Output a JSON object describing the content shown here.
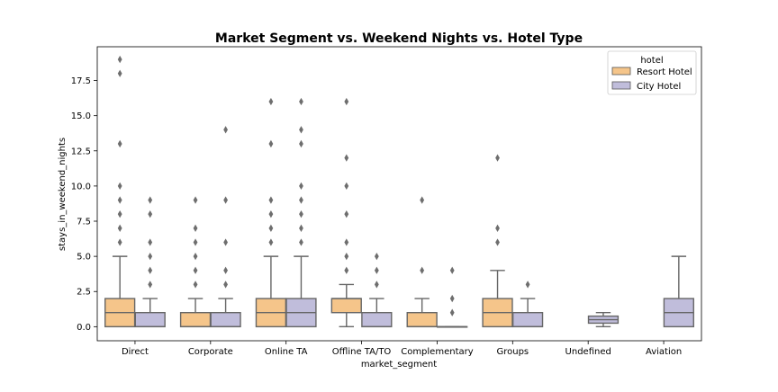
{
  "chart_data": {
    "type": "boxplot",
    "title": "Market Segment vs. Weekend Nights vs. Hotel Type",
    "xlabel": "market_segment",
    "ylabel": "stays_in_weekend_nights",
    "ylim": [
      -1.0,
      19.9
    ],
    "yticks": [
      0.0,
      2.5,
      5.0,
      7.5,
      10.0,
      12.5,
      15.0,
      17.5
    ],
    "ytick_labels": [
      "0.0",
      "2.5",
      "5.0",
      "7.5",
      "10.0",
      "12.5",
      "15.0",
      "17.5"
    ],
    "grid": false,
    "legend": {
      "title": "hotel",
      "placement": "top-right",
      "entries": [
        "Resort Hotel",
        "City Hotel"
      ]
    },
    "categories": [
      "Direct",
      "Corporate",
      "Online TA",
      "Offline TA/TO",
      "Complementary",
      "Groups",
      "Undefined",
      "Aviation"
    ],
    "series": [
      {
        "name": "Resort Hotel",
        "color": "#f5c58a",
        "boxes": [
          {
            "whislo": 0,
            "q1": 0,
            "med": 1,
            "q3": 2,
            "whishi": 5,
            "fliers": [
              6,
              7,
              8,
              9,
              10,
              13,
              18,
              19
            ]
          },
          {
            "whislo": 0,
            "q1": 0,
            "med": 0,
            "q3": 1,
            "whishi": 2,
            "fliers": [
              3,
              4,
              5,
              6,
              7,
              9
            ]
          },
          {
            "whislo": 0,
            "q1": 0,
            "med": 1,
            "q3": 2,
            "whishi": 5,
            "fliers": [
              6,
              7,
              8,
              9,
              13,
              16
            ]
          },
          {
            "whislo": 0,
            "q1": 1,
            "med": 2,
            "q3": 2,
            "whishi": 3,
            "fliers": [
              4,
              5,
              6,
              8,
              10,
              12,
              16
            ]
          },
          {
            "whislo": 0,
            "q1": 0,
            "med": 0,
            "q3": 1,
            "whishi": 2,
            "fliers": [
              4,
              9
            ]
          },
          {
            "whislo": 0,
            "q1": 0,
            "med": 1,
            "q3": 2,
            "whishi": 4,
            "fliers": [
              6,
              7,
              12
            ]
          },
          null,
          null
        ]
      },
      {
        "name": "City Hotel",
        "color": "#c0bddb",
        "boxes": [
          {
            "whislo": 0,
            "q1": 0,
            "med": 0,
            "q3": 1,
            "whishi": 2,
            "fliers": [
              3,
              4,
              5,
              6,
              8,
              9
            ]
          },
          {
            "whislo": 0,
            "q1": 0,
            "med": 0,
            "q3": 1,
            "whishi": 2,
            "fliers": [
              3,
              4,
              6,
              9,
              14
            ]
          },
          {
            "whislo": 0,
            "q1": 0,
            "med": 1,
            "q3": 2,
            "whishi": 5,
            "fliers": [
              6,
              7,
              8,
              9,
              10,
              13,
              14,
              16
            ]
          },
          {
            "whislo": 0,
            "q1": 0,
            "med": 0,
            "q3": 1,
            "whishi": 2,
            "fliers": [
              3,
              4,
              5
            ]
          },
          {
            "whislo": 0,
            "q1": 0,
            "med": 0,
            "q3": 0,
            "whishi": 0,
            "fliers": [
              1,
              2,
              4
            ]
          },
          {
            "whislo": 0,
            "q1": 0,
            "med": 0,
            "q3": 1,
            "whishi": 2,
            "fliers": [
              3
            ]
          },
          {
            "whislo": 0,
            "q1": 0.25,
            "med": 0.5,
            "q3": 0.75,
            "whishi": 1,
            "fliers": []
          },
          {
            "whislo": 0,
            "q1": 0,
            "med": 1,
            "q3": 2,
            "whishi": 5,
            "fliers": []
          }
        ]
      }
    ]
  }
}
